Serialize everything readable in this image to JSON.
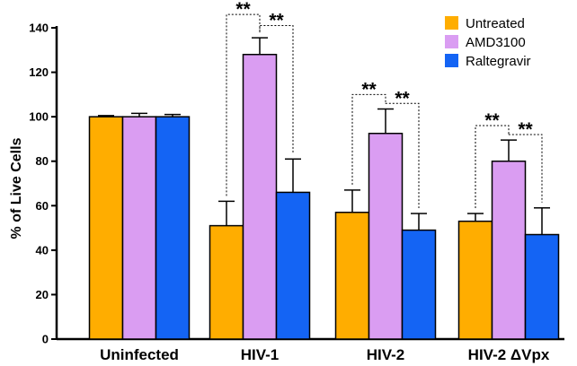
{
  "chart_data": {
    "type": "bar",
    "title": "",
    "xlabel": "",
    "ylabel": "% of Live Cells",
    "ylim": [
      0,
      140
    ],
    "yticks": [
      "0",
      "20",
      "40",
      "60",
      "80",
      "100",
      "120",
      "140"
    ],
    "yticks_values": [
      0,
      20,
      40,
      60,
      80,
      100,
      120,
      140
    ],
    "categories": [
      "Uninfected",
      "HIV-1",
      "HIV-2",
      "HIV-2 ΔVpx"
    ],
    "series": [
      {
        "name": "Untreated",
        "color": "#FFAD00",
        "values": [
          100,
          51,
          57,
          53
        ],
        "errors": [
          0.5,
          11,
          10,
          3.5
        ]
      },
      {
        "name": "AMD3100",
        "color": "#DA9DF2",
        "values": [
          100,
          128,
          92.5,
          80
        ],
        "errors": [
          1.5,
          7.5,
          11,
          9.5
        ]
      },
      {
        "name": "Raltegravir",
        "color": "#1464F4",
        "values": [
          100,
          66,
          49,
          47
        ],
        "errors": [
          1,
          15,
          7.5,
          12
        ]
      }
    ],
    "significance": [
      {
        "category": 1,
        "from": 0,
        "to": 1,
        "label": "**",
        "y": 146
      },
      {
        "category": 1,
        "from": 1,
        "to": 2,
        "label": "**",
        "y": 141
      },
      {
        "category": 2,
        "from": 0,
        "to": 1,
        "label": "**",
        "y": 110
      },
      {
        "category": 2,
        "from": 1,
        "to": 2,
        "label": "**",
        "y": 106
      },
      {
        "category": 3,
        "from": 0,
        "to": 1,
        "label": "**",
        "y": 96
      },
      {
        "category": 3,
        "from": 1,
        "to": 2,
        "label": "**",
        "y": 92
      }
    ],
    "legend_position": "top-right",
    "grid": false
  }
}
